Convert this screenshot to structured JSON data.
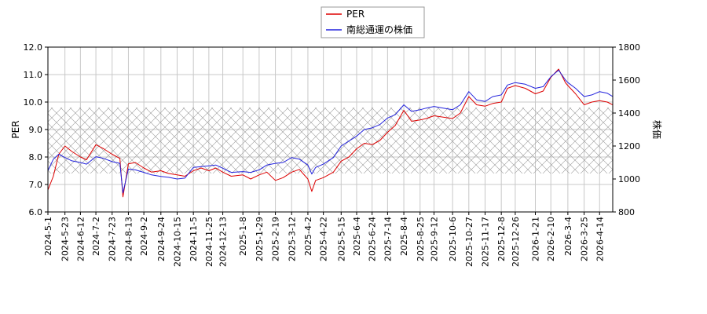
{
  "colors": {
    "per": "#dd0000",
    "price": "#2222dd",
    "grid": "#c8c8c8",
    "hatch": "#999999"
  },
  "legend": {
    "placement": "top-center",
    "per_label": "PER",
    "price_label": "南総通運の株価"
  },
  "chart_data": {
    "type": "line",
    "title": "",
    "xlabel": "",
    "ylabel_left": "PER",
    "ylabel_right": "株価",
    "ylim_left": [
      6.0,
      12.0
    ],
    "ylim_right": [
      800,
      1800
    ],
    "yticks_left": [
      "6.0",
      "7.0",
      "8.0",
      "9.0",
      "10.0",
      "11.0",
      "12.0"
    ],
    "yticks_right": [
      "800",
      "1000",
      "1200",
      "1400",
      "1600",
      "1800"
    ],
    "x_range": [
      "2024-5-1",
      "2026-5-1"
    ],
    "x_ticks": [
      "2024-5-1",
      "2024-5-23",
      "2024-6-12",
      "2024-7-2",
      "2024-7-23",
      "2024-8-13",
      "2024-9-2",
      "2024-9-24",
      "2024-10-15",
      "2024-11-5",
      "2024-11-25",
      "2024-12-13",
      "2025-1-8",
      "2025-1-29",
      "2025-2-19",
      "2025-3-12",
      "2025-4-2",
      "2025-4-22",
      "2025-5-15",
      "2025-6-4",
      "2025-6-24",
      "2025-7-14",
      "2025-8-4",
      "2025-8-25",
      "2025-9-12",
      "2025-10-6",
      "2025-10-27",
      "2025-11-17",
      "2025-12-8",
      "2025-12-26",
      "2026-1-21",
      "2026-2-10",
      "2026-3-4",
      "2026-3-25",
      "2026-4-14"
    ],
    "grid": true,
    "shaded_band": {
      "axis": "left",
      "from": 7.4,
      "to": 9.8
    },
    "series": [
      {
        "name": "PER",
        "axis": "left",
        "points": [
          [
            "2024-5-1",
            6.8
          ],
          [
            "2024-5-8",
            7.3
          ],
          [
            "2024-5-15",
            8.1
          ],
          [
            "2024-5-23",
            8.4
          ],
          [
            "2024-6-1",
            8.2
          ],
          [
            "2024-6-12",
            8.0
          ],
          [
            "2024-6-20",
            7.9
          ],
          [
            "2024-7-2",
            8.45
          ],
          [
            "2024-7-12",
            8.3
          ],
          [
            "2024-7-23",
            8.1
          ],
          [
            "2024-8-2",
            7.95
          ],
          [
            "2024-8-6",
            6.55
          ],
          [
            "2024-8-13",
            7.75
          ],
          [
            "2024-8-22",
            7.8
          ],
          [
            "2024-9-2",
            7.6
          ],
          [
            "2024-9-12",
            7.45
          ],
          [
            "2024-9-24",
            7.5
          ],
          [
            "2024-10-4",
            7.4
          ],
          [
            "2024-10-15",
            7.35
          ],
          [
            "2024-10-25",
            7.3
          ],
          [
            "2024-11-5",
            7.5
          ],
          [
            "2024-11-15",
            7.6
          ],
          [
            "2024-11-25",
            7.5
          ],
          [
            "2024-12-4",
            7.6
          ],
          [
            "2024-12-13",
            7.45
          ],
          [
            "2024-12-24",
            7.3
          ],
          [
            "2025-1-8",
            7.35
          ],
          [
            "2025-1-18",
            7.2
          ],
          [
            "2025-1-29",
            7.35
          ],
          [
            "2025-2-8",
            7.45
          ],
          [
            "2025-2-19",
            7.15
          ],
          [
            "2025-3-1",
            7.25
          ],
          [
            "2025-3-12",
            7.45
          ],
          [
            "2025-3-22",
            7.55
          ],
          [
            "2025-4-2",
            7.2
          ],
          [
            "2025-4-7",
            6.75
          ],
          [
            "2025-4-12",
            7.15
          ],
          [
            "2025-4-22",
            7.25
          ],
          [
            "2025-5-5",
            7.45
          ],
          [
            "2025-5-15",
            7.85
          ],
          [
            "2025-5-25",
            8.0
          ],
          [
            "2025-6-4",
            8.3
          ],
          [
            "2025-6-14",
            8.5
          ],
          [
            "2025-6-24",
            8.45
          ],
          [
            "2025-7-4",
            8.6
          ],
          [
            "2025-7-14",
            8.9
          ],
          [
            "2025-7-24",
            9.15
          ],
          [
            "2025-8-4",
            9.7
          ],
          [
            "2025-8-14",
            9.3
          ],
          [
            "2025-8-25",
            9.35
          ],
          [
            "2025-9-2",
            9.4
          ],
          [
            "2025-9-12",
            9.5
          ],
          [
            "2025-9-24",
            9.45
          ],
          [
            "2025-10-6",
            9.4
          ],
          [
            "2025-10-16",
            9.6
          ],
          [
            "2025-10-27",
            10.2
          ],
          [
            "2025-11-6",
            9.9
          ],
          [
            "2025-11-17",
            9.85
          ],
          [
            "2025-11-27",
            9.95
          ],
          [
            "2025-12-8",
            10.0
          ],
          [
            "2025-12-16",
            10.5
          ],
          [
            "2025-12-26",
            10.6
          ],
          [
            "2026-1-8",
            10.5
          ],
          [
            "2026-1-21",
            10.3
          ],
          [
            "2026-1-31",
            10.4
          ],
          [
            "2026-2-10",
            10.9
          ],
          [
            "2026-2-20",
            11.2
          ],
          [
            "2026-3-1",
            10.7
          ],
          [
            "2026-3-4",
            10.6
          ],
          [
            "2026-3-14",
            10.3
          ],
          [
            "2026-3-25",
            9.9
          ],
          [
            "2026-4-4",
            10.0
          ],
          [
            "2026-4-14",
            10.05
          ],
          [
            "2026-4-24",
            10.0
          ],
          [
            "2026-5-1",
            9.9
          ]
        ]
      },
      {
        "name": "南総通運の株価",
        "axis": "right",
        "points": [
          [
            "2024-5-1",
            1050
          ],
          [
            "2024-5-8",
            1120
          ],
          [
            "2024-5-15",
            1150
          ],
          [
            "2024-5-23",
            1130
          ],
          [
            "2024-6-1",
            1110
          ],
          [
            "2024-6-12",
            1100
          ],
          [
            "2024-6-20",
            1090
          ],
          [
            "2024-7-2",
            1135
          ],
          [
            "2024-7-12",
            1125
          ],
          [
            "2024-7-23",
            1105
          ],
          [
            "2024-8-2",
            1095
          ],
          [
            "2024-8-6",
            915
          ],
          [
            "2024-8-13",
            1060
          ],
          [
            "2024-8-22",
            1055
          ],
          [
            "2024-9-2",
            1040
          ],
          [
            "2024-9-12",
            1025
          ],
          [
            "2024-9-24",
            1015
          ],
          [
            "2024-10-4",
            1010
          ],
          [
            "2024-10-15",
            1000
          ],
          [
            "2024-10-25",
            1005
          ],
          [
            "2024-11-5",
            1070
          ],
          [
            "2024-11-15",
            1075
          ],
          [
            "2024-11-25",
            1080
          ],
          [
            "2024-12-4",
            1085
          ],
          [
            "2024-12-13",
            1065
          ],
          [
            "2024-12-24",
            1040
          ],
          [
            "2025-1-8",
            1045
          ],
          [
            "2025-1-18",
            1040
          ],
          [
            "2025-1-29",
            1055
          ],
          [
            "2025-2-8",
            1085
          ],
          [
            "2025-2-19",
            1095
          ],
          [
            "2025-3-1",
            1100
          ],
          [
            "2025-3-12",
            1130
          ],
          [
            "2025-3-22",
            1120
          ],
          [
            "2025-4-2",
            1085
          ],
          [
            "2025-4-7",
            1030
          ],
          [
            "2025-4-12",
            1070
          ],
          [
            "2025-4-22",
            1090
          ],
          [
            "2025-5-5",
            1130
          ],
          [
            "2025-5-15",
            1200
          ],
          [
            "2025-5-25",
            1230
          ],
          [
            "2025-6-4",
            1260
          ],
          [
            "2025-6-14",
            1300
          ],
          [
            "2025-6-24",
            1310
          ],
          [
            "2025-7-4",
            1330
          ],
          [
            "2025-7-14",
            1370
          ],
          [
            "2025-7-24",
            1390
          ],
          [
            "2025-8-4",
            1450
          ],
          [
            "2025-8-14",
            1410
          ],
          [
            "2025-8-25",
            1420
          ],
          [
            "2025-9-2",
            1430
          ],
          [
            "2025-9-12",
            1440
          ],
          [
            "2025-9-24",
            1430
          ],
          [
            "2025-10-6",
            1420
          ],
          [
            "2025-10-16",
            1450
          ],
          [
            "2025-10-27",
            1530
          ],
          [
            "2025-11-6",
            1480
          ],
          [
            "2025-11-17",
            1470
          ],
          [
            "2025-11-27",
            1500
          ],
          [
            "2025-12-8",
            1510
          ],
          [
            "2025-12-16",
            1570
          ],
          [
            "2025-12-26",
            1585
          ],
          [
            "2026-1-8",
            1575
          ],
          [
            "2026-1-21",
            1550
          ],
          [
            "2026-1-31",
            1560
          ],
          [
            "2026-2-10",
            1620
          ],
          [
            "2026-2-20",
            1660
          ],
          [
            "2026-3-1",
            1600
          ],
          [
            "2026-3-4",
            1585
          ],
          [
            "2026-3-14",
            1550
          ],
          [
            "2026-3-25",
            1500
          ],
          [
            "2026-4-4",
            1510
          ],
          [
            "2026-4-14",
            1530
          ],
          [
            "2026-4-24",
            1520
          ],
          [
            "2026-5-1",
            1500
          ]
        ]
      }
    ]
  }
}
